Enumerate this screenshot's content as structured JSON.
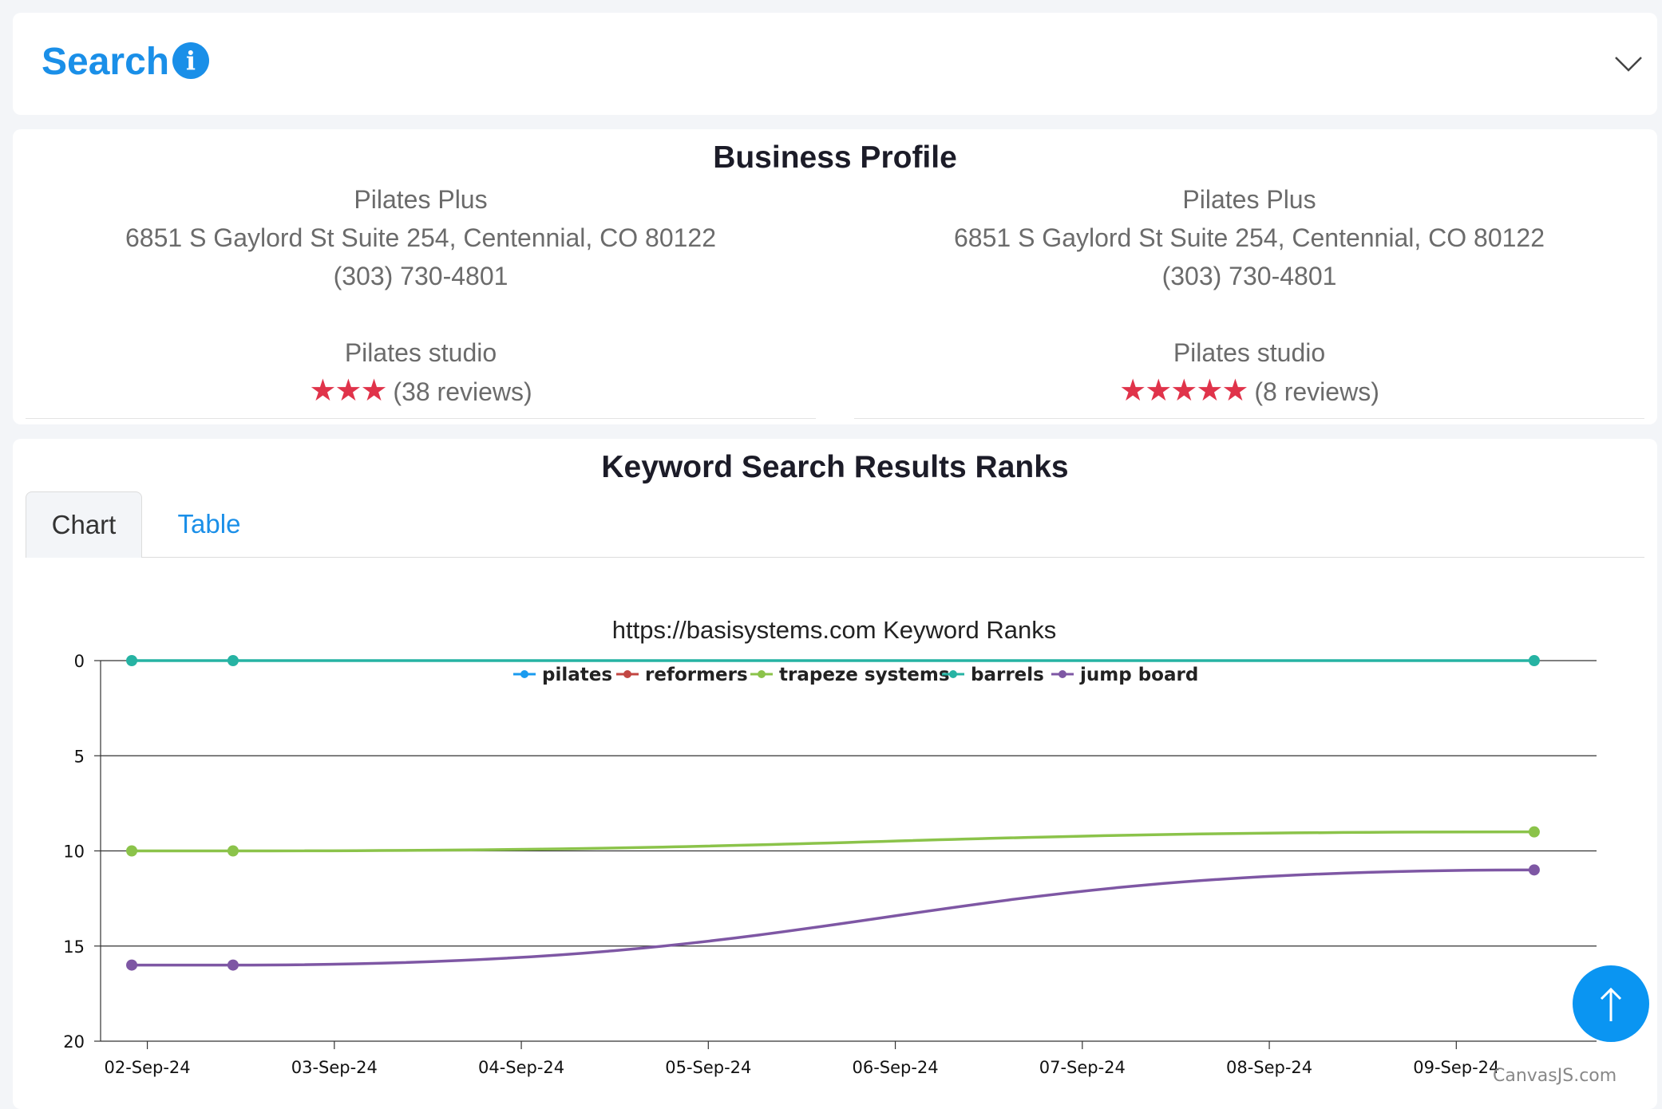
{
  "search": {
    "title": "Search"
  },
  "profile": {
    "title": "Business Profile",
    "cards": [
      {
        "name": "Pilates Plus",
        "address": "6851 S Gaylord St Suite 254, Centennial, CO 80122",
        "phone": "(303) 730-4801",
        "category": "Pilates studio",
        "stars": "★★★",
        "rating": 3,
        "reviews": "(38 reviews)"
      },
      {
        "name": "Pilates Plus",
        "address": "6851 S Gaylord St Suite 254, Centennial, CO 80122",
        "phone": "(303) 730-4801",
        "category": "Pilates studio",
        "stars": "★★★★★",
        "rating": 5,
        "reviews": "(8 reviews)"
      }
    ]
  },
  "ranks": {
    "title": "Keyword Search Results Ranks",
    "tabs": [
      "Chart",
      "Table"
    ],
    "active_tab": "Chart"
  },
  "credit": "CanvasJS.com",
  "chart_data": {
    "type": "line",
    "title": "https://basisystems.com Keyword Ranks",
    "xlabel": "",
    "ylabel": "",
    "y_reversed": true,
    "ylim": [
      0,
      20
    ],
    "yticks": [
      0,
      5,
      10,
      15,
      20
    ],
    "xticks": [
      "02-Sep-24",
      "03-Sep-24",
      "04-Sep-24",
      "05-Sep-24",
      "06-Sep-24",
      "07-Sep-24",
      "08-Sep-24",
      "09-Sep-24"
    ],
    "xlim": [
      "01-Sep-24 18:00",
      "09-Sep-24 18:00"
    ],
    "legend": "top-center",
    "grid": true,
    "series": [
      {
        "name": "pilates",
        "color": "#1a9bef",
        "x": [],
        "y": []
      },
      {
        "name": "reformers",
        "color": "#c24642",
        "x": [],
        "y": []
      },
      {
        "name": "trapeze systems",
        "color": "#8bc34a",
        "x": [
          "01-Sep-24 22:00",
          "02-Sep-24 11:00",
          "09-Sep-24 10:00"
        ],
        "y": [
          10,
          10,
          9
        ]
      },
      {
        "name": "barrels",
        "color": "#26b3a3",
        "x": [
          "01-Sep-24 22:00",
          "02-Sep-24 11:00",
          "09-Sep-24 10:00"
        ],
        "y": [
          0,
          0,
          0
        ]
      },
      {
        "name": "jump board",
        "color": "#7e57a4",
        "x": [
          "01-Sep-24 22:00",
          "02-Sep-24 11:00",
          "09-Sep-24 10:00"
        ],
        "y": [
          16,
          16,
          11
        ]
      }
    ]
  }
}
